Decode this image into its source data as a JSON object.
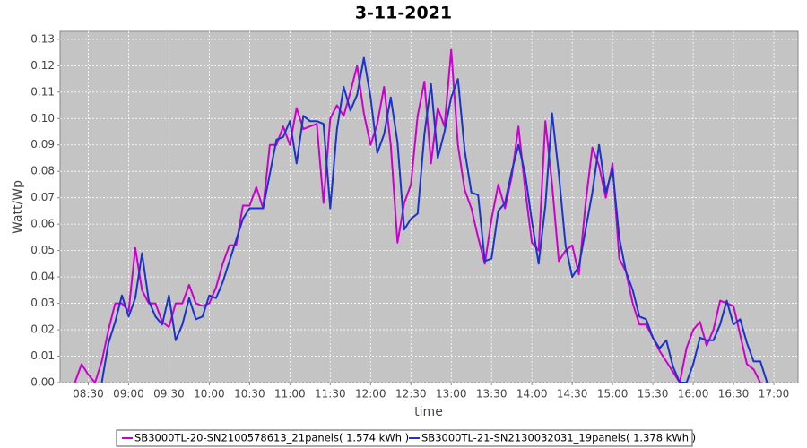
{
  "chart_data": {
    "type": "line",
    "title": "3-11-2021",
    "x_label": "time",
    "y_label": "Watt/Wp",
    "xlim": [
      489,
      1038
    ],
    "ylim": [
      0,
      0.133
    ],
    "grid": true,
    "xticks": [
      {
        "value": 510,
        "label": "08:30"
      },
      {
        "value": 540,
        "label": "09:00"
      },
      {
        "value": 570,
        "label": "09:30"
      },
      {
        "value": 600,
        "label": "10:00"
      },
      {
        "value": 630,
        "label": "10:30"
      },
      {
        "value": 660,
        "label": "11:00"
      },
      {
        "value": 690,
        "label": "11:30"
      },
      {
        "value": 720,
        "label": "12:00"
      },
      {
        "value": 750,
        "label": "12:30"
      },
      {
        "value": 780,
        "label": "13:00"
      },
      {
        "value": 810,
        "label": "13:30"
      },
      {
        "value": 840,
        "label": "14:00"
      },
      {
        "value": 870,
        "label": "14:30"
      },
      {
        "value": 900,
        "label": "15:00"
      },
      {
        "value": 930,
        "label": "15:30"
      },
      {
        "value": 960,
        "label": "16:00"
      },
      {
        "value": 990,
        "label": "16:30"
      },
      {
        "value": 1020,
        "label": "17:00"
      }
    ],
    "yticks": [
      {
        "value": 0,
        "label": "0.00"
      },
      {
        "value": 0.01,
        "label": "0.01"
      },
      {
        "value": 0.02,
        "label": "0.02"
      },
      {
        "value": 0.03,
        "label": "0.03"
      },
      {
        "value": 0.04,
        "label": "0.04"
      },
      {
        "value": 0.05,
        "label": "0.05"
      },
      {
        "value": 0.06,
        "label": "0.06"
      },
      {
        "value": 0.07,
        "label": "0.07"
      },
      {
        "value": 0.08,
        "label": "0.08"
      },
      {
        "value": 0.09,
        "label": "0.09"
      },
      {
        "value": 0.1,
        "label": "0.10"
      },
      {
        "value": 0.11,
        "label": "0.11"
      },
      {
        "value": 0.12,
        "label": "0.12"
      },
      {
        "value": 0.13,
        "label": "0.13"
      }
    ],
    "series": [
      {
        "name": "SB3000TL-20-SN2100578613_21panels( 1.574 kWh )",
        "color": "#cc00cc",
        "x": [
          500,
          505,
          510,
          515,
          520,
          525,
          530,
          535,
          540,
          545,
          550,
          555,
          560,
          565,
          570,
          575,
          580,
          585,
          590,
          595,
          600,
          605,
          610,
          615,
          620,
          625,
          630,
          635,
          640,
          645,
          650,
          655,
          660,
          665,
          670,
          675,
          680,
          685,
          690,
          695,
          700,
          705,
          710,
          715,
          720,
          725,
          730,
          735,
          740,
          745,
          750,
          755,
          760,
          765,
          770,
          775,
          780,
          785,
          790,
          795,
          800,
          805,
          810,
          815,
          820,
          825,
          830,
          835,
          840,
          845,
          850,
          855,
          860,
          865,
          870,
          875,
          880,
          885,
          890,
          895,
          900,
          905,
          910,
          915,
          920,
          925,
          930,
          935,
          940,
          945,
          950,
          955,
          960,
          965,
          970,
          975,
          980,
          985,
          990,
          995,
          1000,
          1005,
          1010
        ],
        "values": [
          0.0,
          0.007,
          0.003,
          0.0,
          0.008,
          0.02,
          0.03,
          0.03,
          0.027,
          0.051,
          0.035,
          0.03,
          0.03,
          0.023,
          0.021,
          0.03,
          0.03,
          0.037,
          0.03,
          0.029,
          0.03,
          0.036,
          0.045,
          0.052,
          0.052,
          0.067,
          0.067,
          0.074,
          0.066,
          0.09,
          0.09,
          0.097,
          0.09,
          0.104,
          0.096,
          0.097,
          0.098,
          0.068,
          0.1,
          0.105,
          0.101,
          0.11,
          0.12,
          0.102,
          0.09,
          0.098,
          0.112,
          0.09,
          0.053,
          0.068,
          0.075,
          0.101,
          0.114,
          0.083,
          0.104,
          0.097,
          0.126,
          0.09,
          0.073,
          0.066,
          0.055,
          0.045,
          0.062,
          0.075,
          0.066,
          0.078,
          0.097,
          0.073,
          0.053,
          0.05,
          0.099,
          0.075,
          0.046,
          0.05,
          0.052,
          0.041,
          0.068,
          0.089,
          0.082,
          0.07,
          0.083,
          0.047,
          0.042,
          0.03,
          0.022,
          0.022,
          0.017,
          0.012,
          0.008,
          0.004,
          0.0,
          0.013,
          0.02,
          0.023,
          0.014,
          0.02,
          0.031,
          0.03,
          0.029,
          0.018,
          0.007,
          0.005,
          0.0
        ]
      },
      {
        "name": "SB3000TL-21-SN2130032031_19panels( 1.378 kWh )",
        "color": "#1a33cc",
        "x": [
          520,
          525,
          530,
          535,
          540,
          545,
          550,
          555,
          560,
          565,
          570,
          575,
          580,
          585,
          590,
          595,
          600,
          605,
          610,
          615,
          620,
          625,
          630,
          635,
          640,
          645,
          650,
          655,
          660,
          665,
          670,
          675,
          680,
          685,
          690,
          695,
          700,
          705,
          710,
          715,
          720,
          725,
          730,
          735,
          740,
          745,
          750,
          755,
          760,
          765,
          770,
          775,
          780,
          785,
          790,
          795,
          800,
          805,
          810,
          815,
          820,
          825,
          830,
          835,
          840,
          845,
          850,
          855,
          860,
          865,
          870,
          875,
          880,
          885,
          890,
          895,
          900,
          905,
          910,
          915,
          920,
          925,
          930,
          935,
          940,
          945,
          950,
          955,
          960,
          965,
          970,
          975,
          980,
          985,
          990,
          995,
          1000,
          1005,
          1010,
          1015
        ],
        "values": [
          0.0,
          0.015,
          0.023,
          0.033,
          0.025,
          0.032,
          0.049,
          0.031,
          0.025,
          0.022,
          0.033,
          0.016,
          0.022,
          0.032,
          0.024,
          0.025,
          0.033,
          0.032,
          0.038,
          0.046,
          0.054,
          0.062,
          0.066,
          0.066,
          0.066,
          0.079,
          0.092,
          0.093,
          0.099,
          0.083,
          0.101,
          0.099,
          0.099,
          0.098,
          0.066,
          0.096,
          0.112,
          0.103,
          0.109,
          0.123,
          0.108,
          0.087,
          0.094,
          0.108,
          0.091,
          0.058,
          0.062,
          0.064,
          0.094,
          0.113,
          0.085,
          0.095,
          0.108,
          0.115,
          0.088,
          0.072,
          0.071,
          0.046,
          0.047,
          0.065,
          0.068,
          0.08,
          0.09,
          0.079,
          0.061,
          0.045,
          0.067,
          0.102,
          0.079,
          0.052,
          0.04,
          0.044,
          0.058,
          0.072,
          0.09,
          0.072,
          0.081,
          0.055,
          0.042,
          0.035,
          0.025,
          0.024,
          0.017,
          0.013,
          0.016,
          0.006,
          0.0,
          0.0,
          0.007,
          0.017,
          0.016,
          0.016,
          0.022,
          0.031,
          0.022,
          0.024,
          0.015,
          0.008,
          0.008,
          0.0
        ]
      }
    ]
  }
}
